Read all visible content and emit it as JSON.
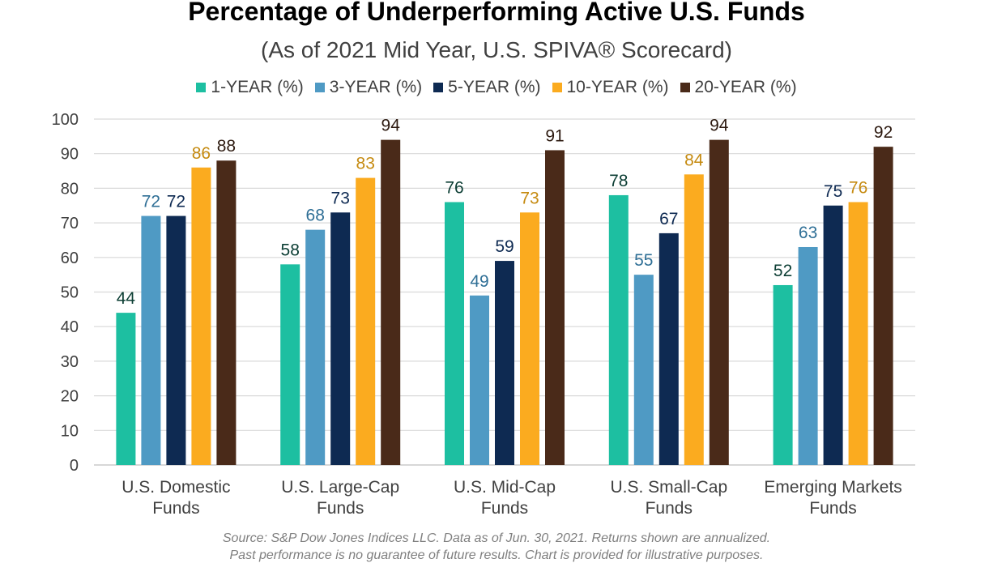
{
  "chart_data": {
    "type": "bar",
    "title": "Percentage of Underperforming Active U.S. Funds",
    "subtitle": "(As of 2021 Mid Year, U.S. SPIVA® Scorecard)",
    "categories": [
      [
        "U.S. Domestic",
        "Funds"
      ],
      [
        "U.S. Large-Cap",
        "Funds"
      ],
      [
        "U.S. Mid-Cap",
        "Funds"
      ],
      [
        "U.S. Small-Cap",
        "Funds"
      ],
      [
        "Emerging Markets",
        "Funds"
      ]
    ],
    "series": [
      {
        "name": "1-YEAR (%)",
        "color": "#1dbfa1",
        "label_color": "#0b3d33",
        "values": [
          44,
          58,
          76,
          78,
          52
        ]
      },
      {
        "name": "3-YEAR (%)",
        "color": "#4f9ac4",
        "label_color": "#2f6f96",
        "values": [
          72,
          68,
          49,
          55,
          63
        ]
      },
      {
        "name": "5-YEAR (%)",
        "color": "#0e2a52",
        "label_color": "#0e2a52",
        "values": [
          72,
          73,
          59,
          67,
          75
        ]
      },
      {
        "name": "10-YEAR (%)",
        "color": "#fbab1f",
        "label_color": "#c58a10",
        "values": [
          86,
          83,
          73,
          84,
          76
        ]
      },
      {
        "name": "20-YEAR (%)",
        "color": "#4a2a19",
        "label_color": "#2d1a10",
        "values": [
          88,
          94,
          91,
          94,
          92
        ]
      }
    ],
    "ylim": [
      0,
      100
    ],
    "yticks": [
      0,
      10,
      20,
      30,
      40,
      50,
      60,
      70,
      80,
      90,
      100
    ],
    "grid": true,
    "legend_position": "top"
  },
  "footnote": {
    "line1": "Source: S&P Dow Jones Indices LLC.  Data as of Jun. 30, 2021.  Returns shown are annualized.",
    "line2": "Past performance is no guarantee of future results.  Chart is provided for illustrative purposes."
  }
}
